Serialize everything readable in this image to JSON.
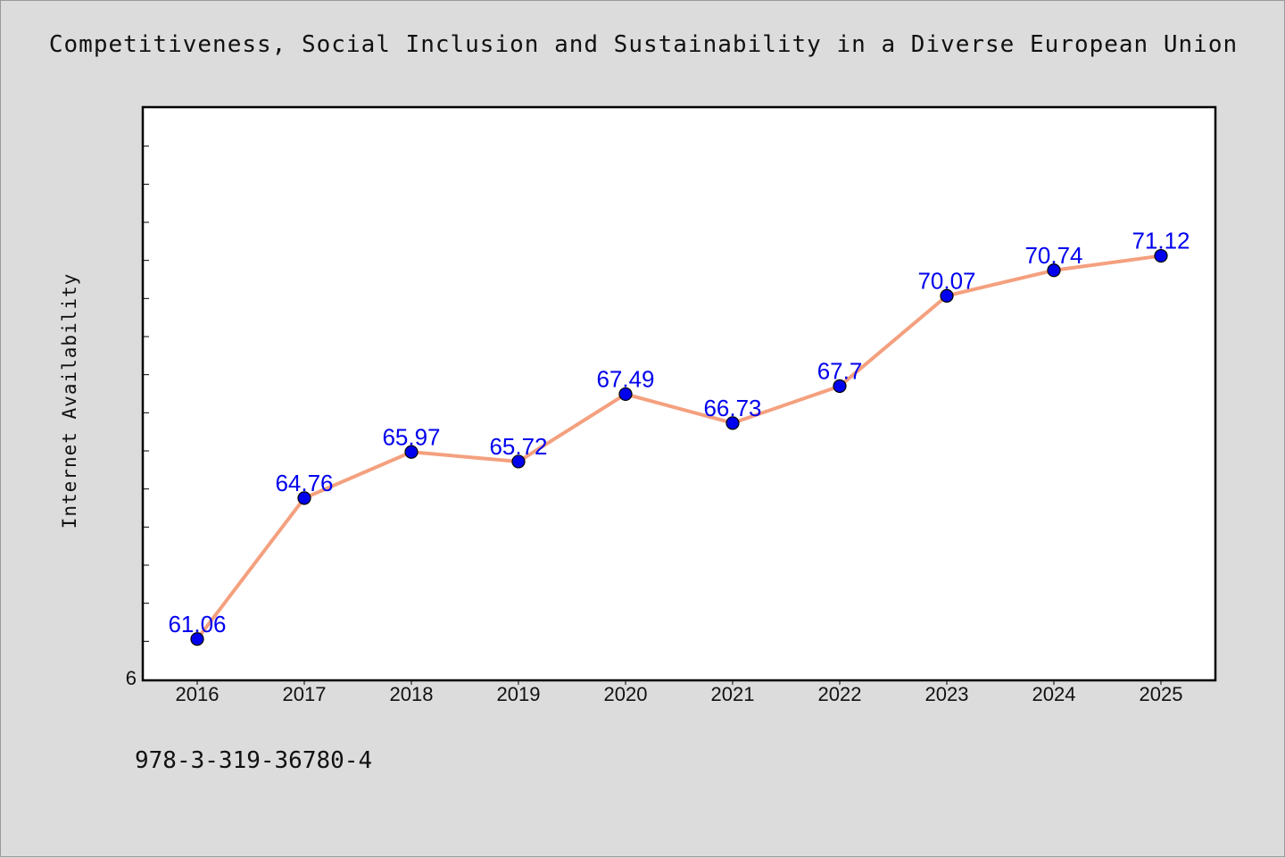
{
  "chart_data": {
    "type": "line",
    "title": "Competitiveness, Social Inclusion and Sustainability in a Diverse European Union",
    "ylabel": "Internet Availability",
    "xlabel": "",
    "categories": [
      "2016",
      "2017",
      "2018",
      "2019",
      "2020",
      "2021",
      "2022",
      "2023",
      "2024",
      "2025"
    ],
    "values": [
      61.06,
      64.76,
      65.97,
      65.72,
      67.49,
      66.73,
      67.7,
      70.07,
      70.74,
      71.12
    ],
    "data_labels": [
      "61.06",
      "64.76",
      "65.97",
      "65.72",
      "67.49",
      "66.73",
      "67.7",
      "70.07",
      "70.74",
      "71.12"
    ],
    "ylim": [
      60,
      75
    ],
    "y_tick_labels": [
      "6"
    ],
    "grid": false,
    "line_color": "#f4a07e",
    "marker_color": "#0000ee",
    "label_color": "#0000ee"
  },
  "footer": {
    "isbn": "978-3-319-36780-4"
  }
}
